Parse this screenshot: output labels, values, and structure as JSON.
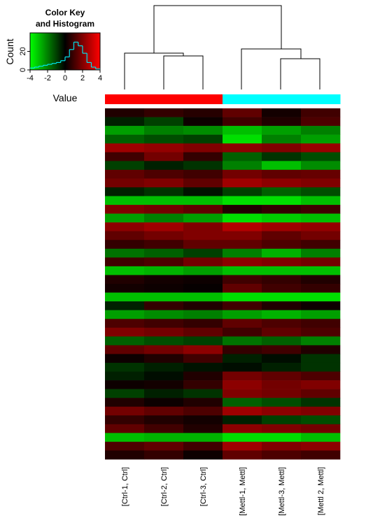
{
  "chart_data": {
    "type": "heatmap",
    "title": [
      "Color Key",
      "and Histogram"
    ],
    "x_label": "Value",
    "y_label": "Count",
    "xlim": [
      -4,
      4
    ],
    "xticks": [
      -4,
      -2,
      0,
      2,
      4
    ],
    "ylim": [
      0,
      40
    ],
    "yticks": [
      0,
      20
    ],
    "colormap": [
      "#00ff00",
      "#000000",
      "#ff0000"
    ],
    "hist_color": "#00e5ee",
    "bins": [
      -4,
      -3.5,
      -3,
      -2.5,
      -2,
      -1.5,
      -1,
      -0.5,
      0,
      0.5,
      1,
      1.5,
      2,
      2.5,
      3,
      3.5,
      4
    ],
    "counts": [
      2,
      3,
      4,
      5,
      6,
      7,
      8,
      10,
      14,
      22,
      30,
      26,
      18,
      8,
      3,
      1
    ],
    "columns": [
      "[Ctrl-1, Ctrl]",
      "[Ctrl-2, Ctrl]",
      "[Ctrl-3, Ctrl]",
      "[Mettl-1, Mettl]",
      "[Mettl-3, Mettl]",
      "[Mettl 2, Mettl]"
    ],
    "column_colors": [
      "#ff0000",
      "#ff0000",
      "#ff0000",
      "#00ffff",
      "#00ffff",
      "#00ffff"
    ],
    "values": [
      [
        0.5,
        0.8,
        0.6,
        1.5,
        0.3,
        1.0
      ],
      [
        -0.5,
        -1.0,
        0.2,
        1.0,
        0.5,
        1.2
      ],
      [
        -2.5,
        -2.0,
        -2.2,
        -3.0,
        -2.5,
        -2.0
      ],
      [
        -1.5,
        -1.2,
        -1.0,
        -3.5,
        -2.0,
        -2.5
      ],
      [
        2.5,
        2.3,
        2.0,
        2.2,
        2.0,
        2.4
      ],
      [
        1.0,
        1.8,
        0.8,
        -1.5,
        -0.8,
        -1.2
      ],
      [
        -1.0,
        -0.5,
        -0.8,
        -2.0,
        -3.0,
        -2.2
      ],
      [
        1.5,
        1.2,
        1.0,
        1.8,
        1.5,
        1.6
      ],
      [
        1.8,
        2.0,
        1.5,
        2.5,
        2.2,
        2.0
      ],
      [
        -0.5,
        -0.8,
        -0.3,
        -1.0,
        -1.5,
        -1.2
      ],
      [
        -3.0,
        -3.0,
        -3.0,
        -3.5,
        -3.5,
        -3.0
      ],
      [
        2.0,
        1.8,
        1.5,
        0.5,
        0.8,
        1.0
      ],
      [
        -2.5,
        -2.0,
        -2.5,
        -3.5,
        -3.2,
        -3.0
      ],
      [
        2.2,
        2.5,
        2.0,
        2.8,
        2.5,
        2.3
      ],
      [
        1.5,
        1.8,
        2.0,
        2.0,
        1.5,
        1.8
      ],
      [
        0.8,
        1.0,
        1.5,
        1.5,
        1.2,
        1.0
      ],
      [
        -1.8,
        -1.5,
        -1.0,
        -2.0,
        -2.8,
        -2.0
      ],
      [
        1.0,
        1.2,
        1.8,
        2.2,
        2.0,
        1.8
      ],
      [
        -3.0,
        -2.8,
        -2.5,
        -3.0,
        -3.0,
        -3.0
      ],
      [
        0.5,
        0.3,
        0.2,
        1.0,
        0.8,
        0.5
      ],
      [
        0.3,
        0.2,
        0.1,
        1.5,
        1.0,
        0.8
      ],
      [
        -3.0,
        -3.0,
        -3.0,
        -3.5,
        -3.5,
        -3.5
      ],
      [
        -0.5,
        0.8,
        0.5,
        1.0,
        0.5,
        0.2
      ],
      [
        -2.5,
        -2.2,
        -2.0,
        -2.5,
        -2.8,
        -2.5
      ],
      [
        1.2,
        1.0,
        0.8,
        1.5,
        1.2,
        1.0
      ],
      [
        2.0,
        1.8,
        1.5,
        1.0,
        1.5,
        1.2
      ],
      [
        -1.5,
        -1.2,
        -1.0,
        -1.8,
        -1.5,
        -2.0
      ],
      [
        1.5,
        1.8,
        2.2,
        0.8,
        1.0,
        0.5
      ],
      [
        0.2,
        0.5,
        1.0,
        -0.5,
        -0.2,
        -0.8
      ],
      [
        -0.8,
        -0.5,
        -0.3,
        -0.2,
        -0.5,
        -0.8
      ],
      [
        -0.5,
        -0.2,
        0.5,
        1.8,
        1.5,
        1.2
      ],
      [
        0.2,
        0.3,
        0.8,
        2.2,
        1.8,
        2.0
      ],
      [
        -1.0,
        -0.5,
        -0.8,
        2.0,
        1.8,
        1.5
      ],
      [
        0.5,
        0.2,
        0.5,
        -1.5,
        -1.2,
        -0.8
      ],
      [
        1.8,
        1.5,
        1.2,
        2.5,
        2.2,
        2.0
      ],
      [
        0.8,
        0.5,
        0.3,
        -0.5,
        -1.0,
        -1.2
      ],
      [
        1.5,
        1.0,
        0.5,
        2.2,
        2.0,
        1.8
      ],
      [
        -3.0,
        -2.8,
        -2.8,
        -3.5,
        -3.5,
        -3.0
      ],
      [
        1.2,
        1.5,
        1.0,
        2.5,
        2.0,
        2.2
      ],
      [
        0.5,
        0.8,
        0.2,
        1.5,
        1.2,
        1.0
      ]
    ]
  }
}
